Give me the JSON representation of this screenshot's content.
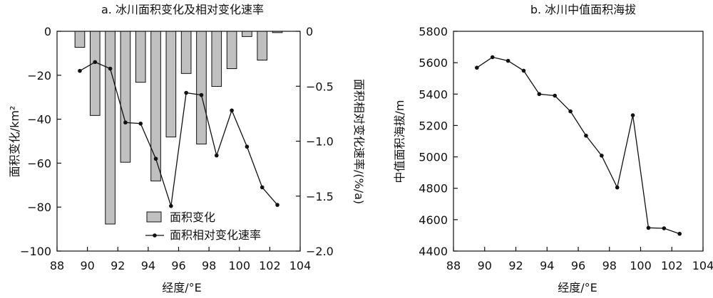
{
  "chart_data": [
    {
      "type": "bar",
      "title": "a. 冰川面积变化及相对变化速率",
      "xlabel": "经度/°E",
      "ylabel": "面积变化/km²",
      "y2label": "面积相对变化速率/(%/a)",
      "xlim": [
        88,
        104
      ],
      "ylim": [
        -100,
        0
      ],
      "y2lim": [
        -2.0,
        0
      ],
      "xticks": [
        "88",
        "90",
        "92",
        "94",
        "96",
        "98",
        "100",
        "102",
        "104"
      ],
      "yticks": [
        "0",
        "−20",
        "−40",
        "−60",
        "−80",
        "−100"
      ],
      "y2ticks": [
        "0",
        "−0.5",
        "−1.0",
        "−1.5",
        "−2.0"
      ],
      "legend": {
        "placement": "bottom-center",
        "bar_label": "面积变化",
        "line_label": "面积相对变化速率"
      },
      "bar_color": "#c0c0c0",
      "series": [
        {
          "name": "面积变化",
          "kind": "bar",
          "axis": "left",
          "x": [
            89.5,
            90.5,
            91.5,
            92.5,
            93.5,
            94.5,
            95.5,
            96.5,
            97.5,
            98.5,
            99.5,
            100.5,
            101.5,
            102.5
          ],
          "values": [
            -7.3,
            -38.3,
            -87.7,
            -59.6,
            -23.2,
            -68.1,
            -48.1,
            -19.2,
            -51.3,
            -25.1,
            -17.0,
            -2.4,
            -13.1,
            -0.6
          ]
        },
        {
          "name": "面积相对变化速率",
          "kind": "line",
          "axis": "right",
          "x": [
            89.5,
            90.5,
            91.5,
            92.5,
            93.5,
            94.5,
            95.5,
            96.5,
            97.5,
            98.5,
            99.5,
            100.5,
            101.5,
            102.5
          ],
          "values": [
            -0.36,
            -0.28,
            -0.34,
            -0.83,
            -0.84,
            -1.16,
            -1.59,
            -0.56,
            -0.58,
            -1.13,
            -0.72,
            -1.05,
            -1.42,
            -1.58
          ]
        }
      ]
    },
    {
      "type": "line",
      "title": "b. 冰川中值面积海拔",
      "xlabel": "经度/°E",
      "ylabel": "中值面积海拔/m",
      "xlim": [
        88,
        104
      ],
      "ylim": [
        4400,
        5800
      ],
      "xticks": [
        "88",
        "90",
        "92",
        "94",
        "96",
        "98",
        "100",
        "102",
        "104"
      ],
      "yticks": [
        "5800",
        "5600",
        "5400",
        "5200",
        "5000",
        "4800",
        "4600",
        "4400"
      ],
      "series": [
        {
          "x": [
            89.5,
            90.5,
            91.5,
            92.5,
            93.5,
            94.5,
            95.5,
            96.5,
            97.5,
            98.5,
            99.5,
            100.5,
            101.5,
            102.5
          ],
          "values": [
            5568,
            5635,
            5612,
            5549,
            5400,
            5390,
            5290,
            5135,
            5008,
            4805,
            5265,
            4548,
            4545,
            4510
          ]
        }
      ]
    }
  ]
}
